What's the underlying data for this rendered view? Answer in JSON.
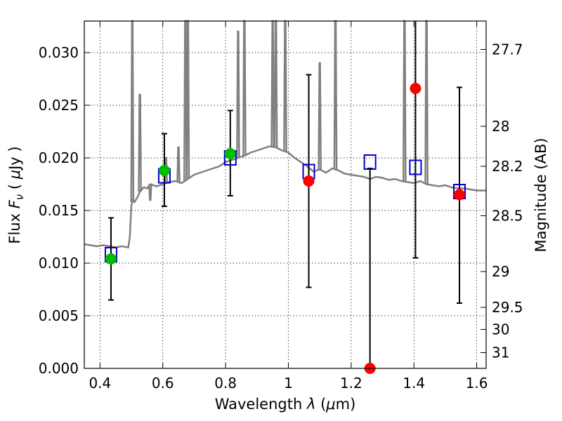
{
  "chart_data": {
    "type": "scatter",
    "title": "",
    "xlabel": {
      "prefix": "Wavelength  ",
      "symbol": "λ",
      "unit_open": " (",
      "mu": "μ",
      "unit_close": "m)"
    },
    "ylabel": {
      "prefix": "Flux  ",
      "symbol": "F",
      "subscript": "ν",
      "unit_open": "  ( ",
      "mu": "μ",
      "unit_close": "Jy )"
    },
    "y2label": "Magnitude (AB)",
    "xlim": [
      0.35,
      1.63
    ],
    "ylim": [
      0.0,
      0.033
    ],
    "x_ticks": [
      0.4,
      0.6,
      0.8,
      1.0,
      1.2,
      1.4,
      1.6
    ],
    "x_tick_labels": [
      "0.4",
      "0.6",
      "0.8",
      "1",
      "1.2",
      "1.4",
      "1.6"
    ],
    "y_ticks": [
      0.0,
      0.005,
      0.01,
      0.015,
      0.02,
      0.025,
      0.03
    ],
    "y_tick_labels": [
      "0.000",
      "0.005",
      "0.010",
      "0.015",
      "0.020",
      "0.025",
      "0.030"
    ],
    "mag_ticks": [
      {
        "label": "27.7",
        "flux": 0.0303
      },
      {
        "label": "28",
        "flux": 0.023
      },
      {
        "label": "28.2",
        "flux": 0.0192
      },
      {
        "label": "28.5",
        "flux": 0.0145
      },
      {
        "label": "29",
        "flux": 0.0092
      },
      {
        "label": "29.5",
        "flux": 0.0058
      },
      {
        "label": "30",
        "flux": 0.0037
      },
      {
        "label": "31",
        "flux": 0.0015
      }
    ],
    "grid": true,
    "colors": {
      "spectrum": "#808080",
      "model": "#0000cc",
      "detected": "#00bb00",
      "upper": "#ff0000",
      "errorbar": "#000000"
    },
    "series": [
      {
        "type": "line",
        "x": [
          0.35,
          0.37,
          0.39,
          0.41,
          0.43,
          0.45,
          0.47,
          0.49,
          0.495,
          0.5,
          0.505,
          0.51,
          0.52,
          0.53,
          0.54,
          0.55,
          0.56,
          0.58,
          0.6,
          0.62,
          0.64,
          0.66,
          0.68,
          0.7,
          0.72,
          0.74,
          0.76,
          0.78,
          0.8,
          0.82,
          0.84,
          0.86,
          0.88,
          0.9,
          0.92,
          0.94,
          0.96,
          0.98,
          1.0,
          1.02,
          1.04,
          1.06,
          1.08,
          1.1,
          1.12,
          1.14,
          1.16,
          1.18,
          1.2,
          1.22,
          1.24,
          1.26,
          1.28,
          1.3,
          1.32,
          1.34,
          1.36,
          1.38,
          1.4,
          1.42,
          1.44,
          1.46,
          1.48,
          1.5,
          1.52,
          1.54,
          1.56,
          1.58,
          1.6,
          1.63
        ],
        "y": [
          0.0118,
          0.0117,
          0.0116,
          0.0117,
          0.0116,
          0.0115,
          0.0116,
          0.0115,
          0.0125,
          0.0155,
          0.016,
          0.0158,
          0.0163,
          0.017,
          0.0172,
          0.0171,
          0.0175,
          0.0173,
          0.0175,
          0.0177,
          0.0178,
          0.0176,
          0.018,
          0.0184,
          0.0186,
          0.0188,
          0.019,
          0.0192,
          0.0196,
          0.0198,
          0.02,
          0.0202,
          0.0205,
          0.0207,
          0.0209,
          0.0211,
          0.021,
          0.0207,
          0.0205,
          0.02,
          0.0196,
          0.0192,
          0.0187,
          0.0189,
          0.0186,
          0.019,
          0.0188,
          0.0185,
          0.0184,
          0.0183,
          0.0182,
          0.018,
          0.0182,
          0.0181,
          0.0179,
          0.018,
          0.0178,
          0.0177,
          0.0176,
          0.0178,
          0.0175,
          0.0174,
          0.0173,
          0.0174,
          0.0172,
          0.0171,
          0.0171,
          0.017,
          0.0169,
          0.0169
        ]
      },
      {
        "type": "emission_lines",
        "x": [
          0.503,
          0.527,
          0.533,
          0.56,
          0.61,
          0.65,
          0.672,
          0.68,
          0.84,
          0.86,
          0.95,
          0.96,
          0.99,
          1.1,
          1.15,
          1.37,
          1.44
        ],
        "peak": [
          0.033,
          0.026,
          0.017,
          0.016,
          0.02,
          0.021,
          0.033,
          0.033,
          0.032,
          0.033,
          0.033,
          0.033,
          0.033,
          0.029,
          0.033,
          0.033,
          0.033
        ]
      },
      {
        "type": "squares",
        "x": [
          0.435,
          0.605,
          0.815,
          1.065,
          1.26,
          1.405,
          1.545
        ],
        "y": [
          0.0108,
          0.0183,
          0.02,
          0.0187,
          0.0196,
          0.0191,
          0.0168
        ]
      },
      {
        "type": "points",
        "x": [
          0.435,
          0.605,
          0.815
        ],
        "y": [
          0.0104,
          0.0188,
          0.0204
        ]
      },
      {
        "type": "points",
        "x": [
          1.065,
          1.26,
          1.405,
          1.545
        ],
        "y": [
          0.0178,
          0.0,
          0.0266,
          0.0165
        ]
      },
      {
        "type": "errorbars",
        "x": [
          0.435,
          0.605,
          0.815,
          1.065,
          1.26,
          1.405,
          1.545
        ],
        "ylow": [
          0.0065,
          0.0154,
          0.0164,
          0.0077,
          0.0,
          0.0105,
          0.0062
        ],
        "yhigh": [
          0.0143,
          0.0223,
          0.0245,
          0.0279,
          0.019,
          0.033,
          0.0267
        ]
      }
    ]
  }
}
